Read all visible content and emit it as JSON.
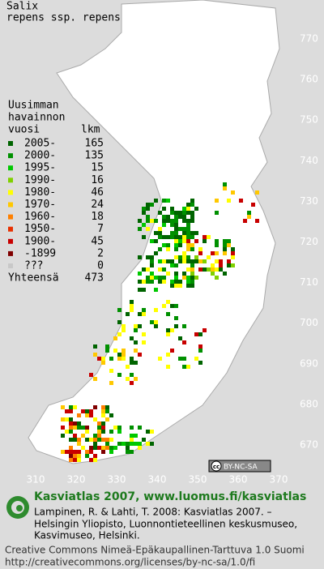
{
  "title": [
    "Salix",
    "repens ssp. repens"
  ],
  "legend": {
    "heading": [
      "Uusimman",
      "havainnon",
      "vuosi"
    ],
    "count_heading": "lkm",
    "rows": [
      {
        "label": "2005-",
        "count": 165,
        "color": "#006400"
      },
      {
        "label": "2000-",
        "count": 135,
        "color": "#009000"
      },
      {
        "label": "1995-",
        "count": 15,
        "color": "#00c800"
      },
      {
        "label": "1990-",
        "count": 16,
        "color": "#80d000"
      },
      {
        "label": "1980-",
        "count": 46,
        "color": "#ffff00"
      },
      {
        "label": "1970-",
        "count": 24,
        "color": "#ffc800"
      },
      {
        "label": "1960-",
        "count": 18,
        "color": "#ff8000"
      },
      {
        "label": "1950-",
        "count": 7,
        "color": "#e83000"
      },
      {
        "label": "1900-",
        "count": 45,
        "color": "#c80000"
      },
      {
        "label": "-1899",
        "count": 2,
        "color": "#800000"
      },
      {
        "label": "???",
        "count": 0,
        "color": "#c8c8c8"
      }
    ],
    "total": {
      "label": "Yhteensä",
      "count": 473
    }
  },
  "grid": {
    "y_labels": [
      "770",
      "760",
      "750",
      "740",
      "730",
      "720",
      "710",
      "700",
      "690",
      "680",
      "670"
    ],
    "x_labels": [
      "310",
      "320",
      "330",
      "340",
      "350",
      "360",
      "370"
    ]
  },
  "badge": "BY-NC-SA",
  "footer": {
    "title": "Kasviatlas 2007, www.luomus.fi/kasviatlas",
    "citation": [
      "Lampinen, R. & Lahti, T. 2008: Kasviatlas 2007. –",
      "Helsingin Yliopisto, Luonnontieteellinen keskusmuseo,",
      "Kasvimuseo, Helsinki."
    ],
    "license": [
      "Creative Commons Nimeä-Epäkaupallinen-Tarttuva 1.0 Suomi",
      "http://creativecommons.org/licenses/by-nc-sa/1.0/fi"
    ]
  }
}
